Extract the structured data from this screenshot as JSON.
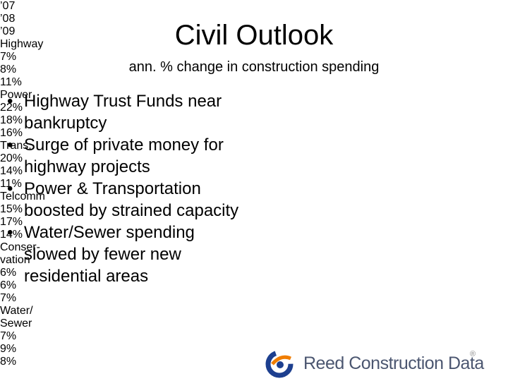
{
  "header": {
    "title": "Civil Outlook",
    "subtitle": "ann. % change in construction spending"
  },
  "bullets": [
    "Highway Trust Funds near bankruptcy",
    "Surge of private money for highway projects",
    "Power & Transportation boosted by strained capacity",
    "Water/Sewer spending slowed by fewer new residential areas"
  ],
  "table": {
    "columns": [
      "’07",
      "’08",
      "’09"
    ],
    "rows": [
      {
        "label": [
          "Highway"
        ],
        "cells": [
          "7%",
          "8%",
          "11%"
        ]
      },
      {
        "label": [
          "Power"
        ],
        "cells": [
          "22%",
          "18%",
          "16%"
        ]
      },
      {
        "label": [
          "Trans."
        ],
        "cells": [
          "20%",
          "14%",
          "11%"
        ]
      },
      {
        "label": [
          "Telcomm"
        ],
        "cells": [
          "15%",
          "17%",
          "14%"
        ]
      },
      {
        "label": [
          "Conser-",
          "vation"
        ],
        "cells": [
          "6%",
          "6%",
          "7%"
        ]
      },
      {
        "label": [
          "Water/",
          "Sewer"
        ],
        "cells": [
          "7%",
          "9%",
          "8%"
        ]
      }
    ]
  },
  "logo": {
    "text": "Reed Construction Data",
    "mark": "®"
  }
}
